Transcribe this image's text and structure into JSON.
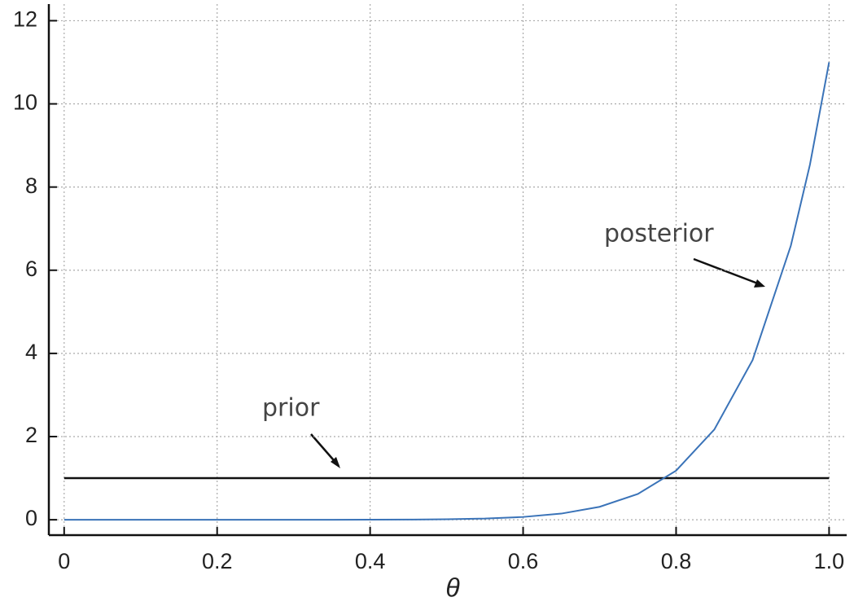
{
  "chart_data": {
    "type": "line",
    "x_label": "θ",
    "x": [
      0,
      0.05,
      0.1,
      0.15,
      0.2,
      0.25,
      0.3,
      0.35,
      0.4,
      0.45,
      0.5,
      0.55,
      0.6,
      0.65,
      0.7,
      0.75,
      0.8,
      0.85,
      0.9,
      0.95,
      0.975,
      1
    ],
    "series": [
      {
        "name": "prior",
        "color": "#111111",
        "values": [
          1,
          1,
          1,
          1,
          1,
          1,
          1,
          1,
          1,
          1,
          1,
          1,
          1,
          1,
          1,
          1,
          1,
          1,
          1,
          1,
          1,
          1
        ]
      },
      {
        "name": "posterior",
        "color": "#3a73b8",
        "values": [
          0,
          0,
          0,
          0,
          0,
          0,
          0,
          0,
          0.001,
          0.004,
          0.011,
          0.028,
          0.067,
          0.148,
          0.311,
          0.619,
          1.18,
          2.17,
          3.84,
          6.59,
          8.54,
          11
        ]
      }
    ],
    "xlim": [
      -0.02,
      1.023
    ],
    "ylim": [
      -0.37,
      12.4
    ],
    "xticks": [
      0,
      0.2,
      0.4,
      0.6,
      0.8,
      {
        "value": 1,
        "label": "1.0"
      }
    ],
    "yticks": [
      0,
      2,
      4,
      6,
      8,
      10,
      12
    ],
    "grid": true
  }
}
